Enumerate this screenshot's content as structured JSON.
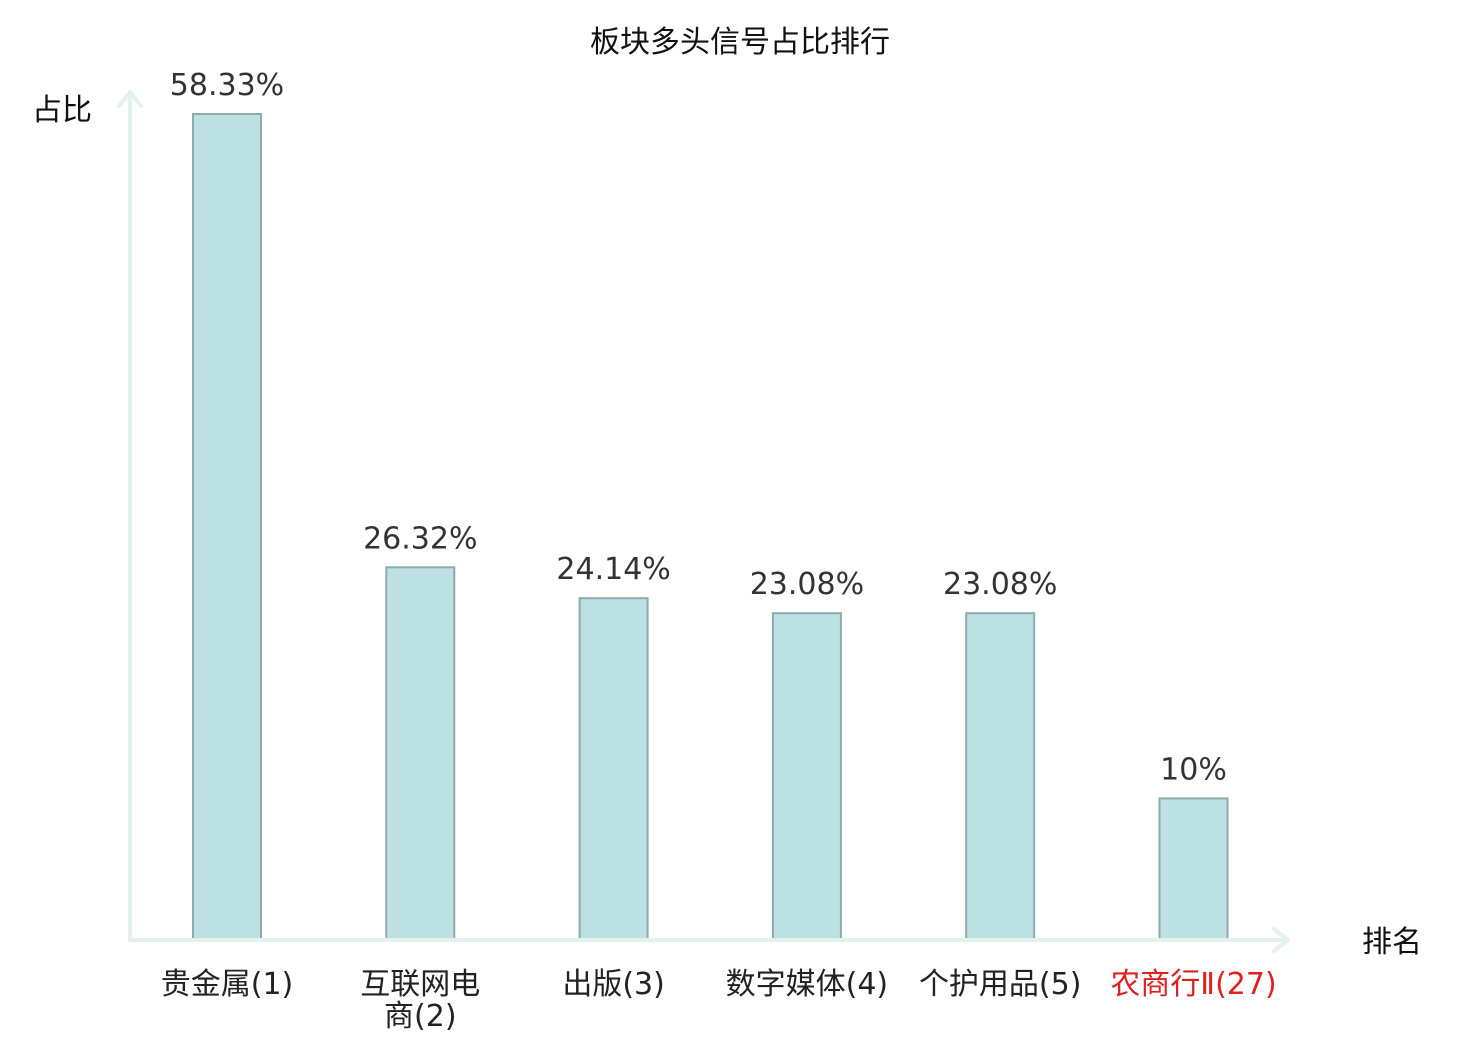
{
  "chart_data": {
    "type": "bar",
    "title": "板块多头信号占比排行",
    "ylabel": "占比",
    "xlabel": "排名",
    "categories": [
      [
        "贵金属(1)"
      ],
      [
        "互联网电",
        "商(2)"
      ],
      [
        "出版(3)"
      ],
      [
        "数字媒体(4)"
      ],
      [
        "个护用品(5)"
      ],
      [
        "农商行Ⅱ(27)"
      ]
    ],
    "values": [
      58.33,
      26.32,
      24.14,
      23.08,
      23.08,
      10
    ],
    "value_labels": [
      "58.33%",
      "26.32%",
      "24.14%",
      "23.08%",
      "23.08%",
      "10%"
    ],
    "highlight_index": 5,
    "highlight_color": "#e02020",
    "bar_color": "#bde1e3",
    "bar_edge_color": "#8faaaf",
    "axis_color": "#e2f3ef",
    "ylim": [
      0,
      60
    ],
    "grid": false
  }
}
